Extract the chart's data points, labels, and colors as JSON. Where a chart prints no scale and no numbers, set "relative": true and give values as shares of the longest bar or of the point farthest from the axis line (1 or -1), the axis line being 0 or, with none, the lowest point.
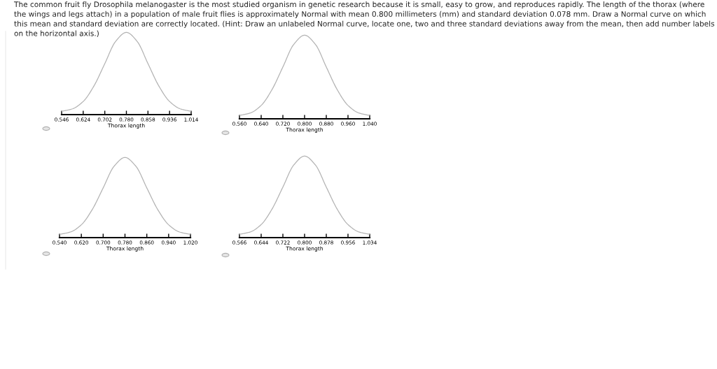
{
  "chart_data": [
    {
      "type": "line",
      "title": "The common fruit fly Drosophila melanogaster is the most studied organism in genetic research because it is small, easy to grow, and reproduces rapidly. The length of the thorax (where the wings and legs attach) in a population of male fruit flies is approximately Normal with mean 0.800 millimeters (mm) and standard deviation 0.078 mm. Draw a Normal curve on which this mean and standard deviation are correctly located. (Hint: Draw an unlabeled Normal curve, locate one, two and three standard deviations away from the mean, then add number labels on the horizontal axis.)",
      "relative": true,
      "xlabel": "Thorax length",
      "xlim": [
        0.546,
        1.014
      ],
      "xticks": [
        {
          "value": 0.546,
          "label": "0.546"
        },
        {
          "value": 0.624,
          "label": "0.624"
        },
        {
          "value": 0.702,
          "label": "0.702"
        },
        {
          "value": 0.78,
          "label": "0.780"
        },
        {
          "value": 0.858,
          "label": "0.858"
        },
        {
          "value": 0.936,
          "label": "0.936"
        },
        {
          "value": 1.014,
          "label": "1.014"
        }
      ],
      "series": [
        {
          "color": "#b3b3b3",
          "x": [
            0.546,
            0.585,
            0.624,
            0.663,
            0.702,
            0.741,
            0.78,
            0.819,
            0.858,
            0.897,
            0.936,
            0.975,
            1.014
          ],
          "values": [
            0.04,
            0.07,
            0.16,
            0.35,
            0.62,
            0.89,
            1.0,
            0.89,
            0.62,
            0.35,
            0.16,
            0.07,
            0.04
          ]
        }
      ],
      "grid": false,
      "marker": "none",
      "line_style": "solid",
      "tick_labels": "x"
    },
    {
      "type": "line",
      "relative": true,
      "xlabel": "Thorax length",
      "xlim": [
        0.56,
        1.04
      ],
      "xticks": [
        {
          "value": 0.56,
          "label": "0.560"
        },
        {
          "value": 0.64,
          "label": "0.640"
        },
        {
          "value": 0.72,
          "label": "0.720"
        },
        {
          "value": 0.8,
          "label": "0.800"
        },
        {
          "value": 0.88,
          "label": "0.880"
        },
        {
          "value": 0.96,
          "label": "0.960"
        },
        {
          "value": 1.04,
          "label": "1.040"
        }
      ],
      "series": [
        {
          "color": "#b3b3b3",
          "x": [
            0.56,
            0.6,
            0.64,
            0.68,
            0.72,
            0.76,
            0.8,
            0.84,
            0.88,
            0.92,
            0.96,
            1.0,
            1.04
          ],
          "values": [
            0.04,
            0.07,
            0.16,
            0.35,
            0.62,
            0.89,
            1.0,
            0.89,
            0.62,
            0.35,
            0.16,
            0.07,
            0.04
          ]
        }
      ],
      "grid": false,
      "marker": "none",
      "line_style": "solid",
      "tick_labels": "x"
    },
    {
      "type": "line",
      "relative": true,
      "xlabel": "Thorax length",
      "xlim": [
        0.54,
        1.02
      ],
      "xticks": [
        {
          "value": 0.54,
          "label": "0.540"
        },
        {
          "value": 0.62,
          "label": "0.620"
        },
        {
          "value": 0.7,
          "label": "0.700"
        },
        {
          "value": 0.78,
          "label": "0.780"
        },
        {
          "value": 0.86,
          "label": "0.860"
        },
        {
          "value": 0.94,
          "label": "0.940"
        },
        {
          "value": 1.02,
          "label": "1.020"
        }
      ],
      "series": [
        {
          "color": "#b3b3b3",
          "x": [
            0.54,
            0.58,
            0.62,
            0.66,
            0.7,
            0.74,
            0.78,
            0.82,
            0.86,
            0.9,
            0.94,
            0.98,
            1.02
          ],
          "values": [
            0.04,
            0.07,
            0.16,
            0.35,
            0.62,
            0.89,
            1.0,
            0.89,
            0.62,
            0.35,
            0.16,
            0.07,
            0.04
          ]
        }
      ],
      "grid": false,
      "marker": "none",
      "line_style": "solid",
      "tick_labels": "x"
    },
    {
      "type": "line",
      "relative": true,
      "xlabel": "Thorax length",
      "xlim": [
        0.566,
        1.034
      ],
      "xticks": [
        {
          "value": 0.566,
          "label": "0.566"
        },
        {
          "value": 0.644,
          "label": "0.644"
        },
        {
          "value": 0.722,
          "label": "0.722"
        },
        {
          "value": 0.8,
          "label": "0.800"
        },
        {
          "value": 0.878,
          "label": "0.878"
        },
        {
          "value": 0.956,
          "label": "0.956"
        },
        {
          "value": 1.034,
          "label": "1.034"
        }
      ],
      "series": [
        {
          "color": "#b3b3b3",
          "x": [
            0.566,
            0.605,
            0.644,
            0.683,
            0.722,
            0.761,
            0.8,
            0.839,
            0.878,
            0.917,
            0.956,
            0.995,
            1.034
          ],
          "values": [
            0.04,
            0.07,
            0.16,
            0.35,
            0.62,
            0.89,
            1.0,
            0.89,
            0.62,
            0.35,
            0.16,
            0.07,
            0.04
          ]
        }
      ],
      "grid": false,
      "marker": "none",
      "line_style": "solid",
      "tick_labels": "x"
    }
  ]
}
